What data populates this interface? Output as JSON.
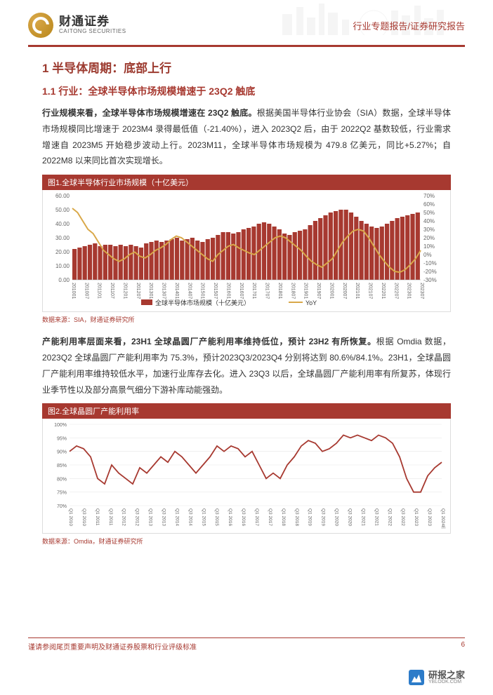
{
  "header": {
    "logo_cn": "财通证券",
    "logo_en": "CAITONG SECURITIES",
    "doc_type": "行业专题报告/证券研究报告"
  },
  "section1": {
    "h1": "1  半导体周期：底部上行",
    "h2": "1.1  行业：全球半导体市场规模增速于 23Q2 触底",
    "p1_bold": "行业规模来看，全球半导体市场规模增速在 23Q2 触底。",
    "p1_rest": "根据美国半导体行业协会（SIA）数据，全球半导体市场规模同比增速于 2023M4 录得最低值（-21.40%），进入 2023Q2 后，由于 2022Q2 基数较低，行业需求增速自 2023M5 开始稳步波动上行。2023M11，全球半导体市场规模为 479.8 亿美元，同比+5.27%；自 2022M8 以来同比首次实现增长。"
  },
  "chart1": {
    "title": "图1.全球半导体行业市场规模（十亿美元）",
    "type": "bar+line",
    "background_color": "#ffffff",
    "grid_color": "#e0e0e0",
    "y_left": {
      "min": 0,
      "max": 60,
      "step": 10,
      "labels": [
        "0.00",
        "10.00",
        "20.00",
        "30.00",
        "40.00",
        "50.00",
        "60.00"
      ],
      "color": "#666666"
    },
    "y_right": {
      "min": -30,
      "max": 70,
      "step": 10,
      "labels": [
        "-30%",
        "-20%",
        "-10%",
        "0%",
        "10%",
        "20%",
        "30%",
        "40%",
        "50%",
        "60%",
        "70%"
      ],
      "color": "#666666"
    },
    "x_labels": [
      "201001",
      "201007",
      "201101",
      "201107",
      "201201",
      "201207",
      "201301",
      "201307",
      "201401",
      "201407",
      "201501",
      "201507",
      "201601",
      "201607",
      "201701",
      "201707",
      "201801",
      "201807",
      "201901",
      "201907",
      "202001",
      "202007",
      "202101",
      "202107",
      "202201",
      "202207",
      "202301",
      "202307"
    ],
    "bars": {
      "label": "全球半导体市场规模（十亿美元）",
      "color": "#a73930",
      "values_approx": [
        22,
        23,
        24,
        25,
        26,
        24,
        25,
        25,
        24,
        25,
        24,
        25,
        24,
        23,
        26,
        27,
        28,
        27,
        28,
        29,
        30,
        28,
        29,
        30,
        28,
        27,
        29,
        30,
        32,
        34,
        34,
        33,
        34,
        36,
        37,
        38,
        40,
        41,
        40,
        38,
        36,
        33,
        32,
        34,
        35,
        36,
        39,
        42,
        44,
        46,
        48,
        49,
        50,
        50,
        48,
        45,
        42,
        40,
        38,
        37,
        38,
        40,
        42,
        44,
        45,
        46,
        47,
        48
      ]
    },
    "line": {
      "label": "YoY",
      "color": "#d9a849",
      "width": 2,
      "values_pct_approx": [
        55,
        50,
        40,
        30,
        25,
        15,
        5,
        0,
        -5,
        -8,
        -5,
        0,
        3,
        -2,
        -4,
        0,
        5,
        8,
        12,
        18,
        22,
        20,
        15,
        10,
        5,
        0,
        -5,
        -8,
        0,
        5,
        10,
        12,
        8,
        5,
        2,
        0,
        5,
        10,
        15,
        20,
        22,
        20,
        15,
        10,
        5,
        -2,
        -8,
        -12,
        -15,
        -10,
        -5,
        5,
        15,
        22,
        28,
        30,
        28,
        20,
        10,
        0,
        -8,
        -15,
        -20,
        -21,
        -18,
        -12,
        -5,
        5
      ]
    },
    "legend": [
      {
        "label": "全球半导体市场规模（十亿美元）",
        "color": "#a73930",
        "type": "bar"
      },
      {
        "label": "YoY",
        "color": "#d9a849",
        "type": "line"
      }
    ],
    "source": "数据来源：SIA，财通证券研究所",
    "axis_font_size": 8,
    "label_font_size": 10
  },
  "section2": {
    "p2_bold": "产能利用率层面来看，23H1 全球晶圆厂产能利用率维持低位，预计 23H2 有所恢复。",
    "p2_rest": "根据 Omdia 数据，2023Q2 全球晶圆厂产能利用率为 75.3%，预计2023Q3/2023Q4 分别将达到 80.6%/84.1%。23H1，全球晶圆厂产能利用率维持较低水平，加速行业库存去化。进入 23Q3 以后，全球晶圆厂产能利用率有所复苏，体现行业季节性以及部分高景气细分下游补库动能强劲。"
  },
  "chart2": {
    "title": "图2.全球晶圆厂产能利用率",
    "type": "line",
    "background_color": "#ffffff",
    "grid_color": "#e8e8e8",
    "y": {
      "min": 70,
      "max": 100,
      "step": 5,
      "labels": [
        "70%",
        "75%",
        "80%",
        "85%",
        "90%",
        "95%",
        "100%"
      ],
      "color": "#666666"
    },
    "x_labels": [
      "Q1 2010",
      "Q3 2010",
      "Q1 2011",
      "Q3 2011",
      "Q1 2012",
      "Q3 2012",
      "Q1 2013",
      "Q3 2013",
      "Q1 2014",
      "Q3 2014",
      "Q1 2015",
      "Q3 2015",
      "Q1 2016",
      "Q3 2016",
      "Q1 2017",
      "Q3 2017",
      "Q1 2018",
      "Q3 2018",
      "Q1 2019",
      "Q3 2019",
      "Q1 2020",
      "Q3 2020",
      "Q1 2021",
      "Q3 2021",
      "Q1 2022",
      "Q3 2022",
      "Q1 2023",
      "Q3 2023",
      "Q1 2024E"
    ],
    "line": {
      "color": "#a73930",
      "width": 1.8,
      "values_pct_approx": [
        90,
        92,
        91,
        88,
        80,
        78,
        85,
        82,
        80,
        78,
        84,
        82,
        85,
        88,
        86,
        90,
        88,
        85,
        82,
        85,
        88,
        92,
        90,
        92,
        91,
        88,
        90,
        85,
        80,
        82,
        80,
        85,
        88,
        92,
        94,
        93,
        90,
        91,
        93,
        96,
        95,
        96,
        95,
        94,
        96,
        95,
        93,
        88,
        80,
        75,
        75,
        81,
        84,
        86
      ]
    },
    "source": "数据来源：Omdia，财通证券研究所",
    "axis_font_size": 7
  },
  "footer": {
    "disclaimer": "谨请参阅尾页重要声明及财通证券股票和行业评级标准",
    "page": "6"
  },
  "watermark": {
    "cn": "研报之家",
    "en": "YBLOOK.COM"
  }
}
